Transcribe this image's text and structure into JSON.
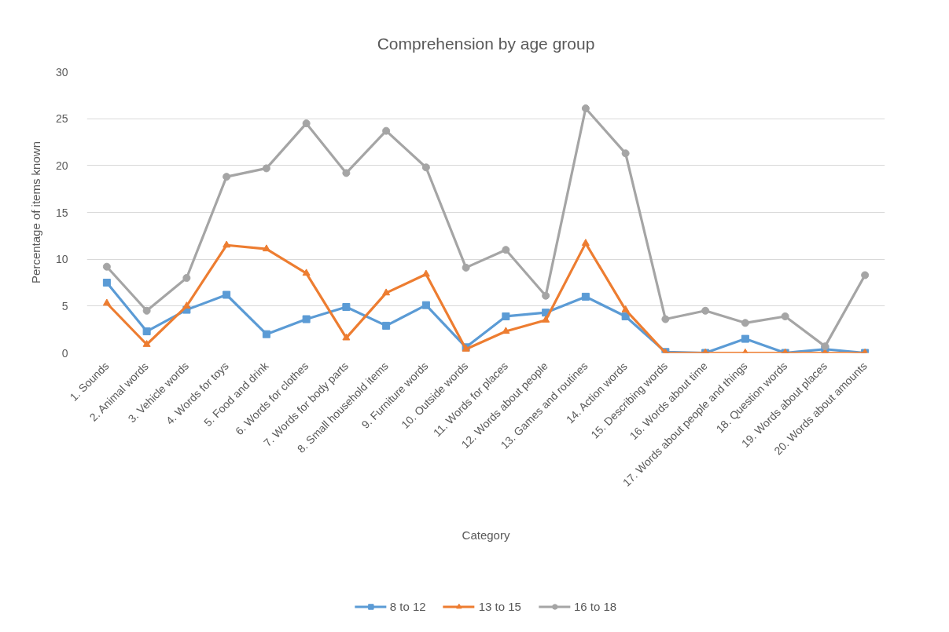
{
  "chart_data": {
    "type": "line",
    "title": "Comprehension by age group",
    "xlabel": "Category",
    "ylabel": "Percentage of items known",
    "categories": [
      "1. Sounds",
      "2. Animal words",
      "3. Vehicle words",
      "4. Words for toys",
      "5. Food and drink",
      "6. Words for clothes",
      "7. Words for body parts",
      "8. Small household items",
      "9. Furniture words",
      "10. Outside words",
      "11. Words for places",
      "12. Words about people",
      "13. Games and routines",
      "14. Action words",
      "15. Describing words",
      "16. Words about time",
      "17. Words about people and things",
      "18. Question words",
      "19. Words about places",
      "20. Words about amounts"
    ],
    "ylim": [
      0,
      30
    ],
    "yticks": [
      0,
      5,
      10,
      15,
      20,
      25,
      30
    ],
    "grid": "y",
    "legend": "bottom",
    "line_style": "solid",
    "series": [
      {
        "name": "8 to 12",
        "color": "#5b9bd5",
        "marker": "square",
        "values": [
          7.5,
          2.3,
          4.6,
          6.2,
          2.0,
          3.6,
          4.9,
          2.9,
          5.1,
          0.6,
          3.9,
          4.3,
          6.0,
          3.9,
          0.1,
          0,
          1.5,
          0,
          0.4,
          0
        ]
      },
      {
        "name": "13 to 15",
        "color": "#ed7d31",
        "marker": "triangle",
        "values": [
          5.3,
          0.9,
          5.0,
          11.5,
          11.1,
          8.5,
          1.6,
          6.4,
          8.4,
          0.4,
          2.3,
          3.5,
          11.7,
          4.6,
          0,
          0,
          0,
          0,
          0,
          0
        ]
      },
      {
        "name": "16 to 18",
        "color": "#a5a5a5",
        "marker": "circle",
        "values": [
          9.2,
          4.5,
          8.0,
          18.8,
          19.7,
          24.5,
          19.2,
          23.7,
          19.8,
          9.1,
          11.0,
          6.1,
          26.1,
          21.3,
          3.6,
          4.5,
          3.2,
          3.9,
          0.7,
          8.3
        ]
      }
    ]
  }
}
